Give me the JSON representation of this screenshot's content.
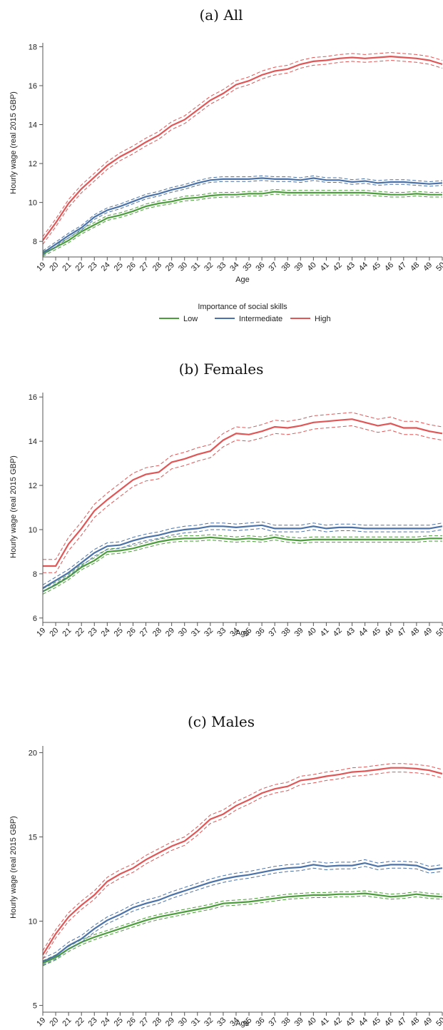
{
  "colors": {
    "Low": "#4b9c3a",
    "Intermediate": "#4a72a8",
    "High": "#e05555"
  },
  "legend": {
    "title": "Importance of social skills",
    "items": [
      {
        "name": "Low",
        "color": "#4b9c3a"
      },
      {
        "name": "Intermediate",
        "color": "#4a72a8"
      },
      {
        "name": "High",
        "color": "#e05555"
      }
    ]
  },
  "chart_data": [
    {
      "type": "line",
      "title": "(a) All",
      "xlabel": "Age",
      "ylabel": "Hourly wage (real 2015 GBP)",
      "x": [
        19,
        20,
        21,
        22,
        23,
        24,
        25,
        26,
        27,
        28,
        29,
        30,
        31,
        32,
        33,
        34,
        35,
        36,
        37,
        38,
        39,
        40,
        41,
        42,
        43,
        44,
        45,
        46,
        47,
        48,
        49,
        50
      ],
      "xlim": [
        19,
        50
      ],
      "ylim": [
        7.2,
        18.2
      ],
      "yticks": [
        8,
        10,
        12,
        14,
        16,
        18
      ],
      "legend_position": "bottom",
      "series": [
        {
          "name": "Low",
          "ci": 0.12,
          "values": [
            7.35,
            7.7,
            8.05,
            8.5,
            8.85,
            9.2,
            9.35,
            9.55,
            9.8,
            9.95,
            10.05,
            10.2,
            10.25,
            10.35,
            10.4,
            10.4,
            10.45,
            10.45,
            10.55,
            10.5,
            10.5,
            10.5,
            10.5,
            10.5,
            10.5,
            10.5,
            10.45,
            10.4,
            10.4,
            10.45,
            10.4,
            10.4
          ]
        },
        {
          "name": "Intermediate",
          "ci": 0.12,
          "values": [
            7.4,
            7.85,
            8.3,
            8.7,
            9.25,
            9.6,
            9.8,
            10.05,
            10.3,
            10.45,
            10.65,
            10.8,
            11.0,
            11.15,
            11.2,
            11.2,
            11.2,
            11.25,
            11.2,
            11.2,
            11.15,
            11.25,
            11.15,
            11.15,
            11.05,
            11.1,
            11.0,
            11.05,
            11.05,
            11.0,
            10.95,
            11.0
          ]
        },
        {
          "name": "High",
          "ci": 0.2,
          "values": [
            8.05,
            8.95,
            9.95,
            10.7,
            11.3,
            11.9,
            12.35,
            12.7,
            13.1,
            13.45,
            13.95,
            14.25,
            14.75,
            15.25,
            15.6,
            16.05,
            16.25,
            16.55,
            16.75,
            16.85,
            17.1,
            17.25,
            17.3,
            17.4,
            17.45,
            17.4,
            17.45,
            17.5,
            17.45,
            17.4,
            17.3,
            17.1
          ]
        }
      ]
    },
    {
      "type": "line",
      "title": "(b) Females",
      "xlabel": "Age",
      "ylabel": "Hourly wage (real 2015 GBP)",
      "x": [
        19,
        20,
        21,
        22,
        23,
        24,
        25,
        26,
        27,
        28,
        29,
        30,
        31,
        32,
        33,
        34,
        35,
        36,
        37,
        38,
        39,
        40,
        41,
        42,
        43,
        44,
        45,
        46,
        47,
        48,
        49,
        50
      ],
      "xlim": [
        19,
        50
      ],
      "ylim": [
        5.8,
        16.2
      ],
      "yticks": [
        6,
        8,
        10,
        12,
        14,
        16
      ],
      "series": [
        {
          "name": "Low",
          "ci": 0.12,
          "values": [
            7.2,
            7.5,
            7.85,
            8.3,
            8.6,
            9.0,
            9.05,
            9.15,
            9.3,
            9.45,
            9.55,
            9.6,
            9.6,
            9.65,
            9.6,
            9.55,
            9.6,
            9.55,
            9.65,
            9.55,
            9.5,
            9.55,
            9.55,
            9.55,
            9.55,
            9.55,
            9.55,
            9.55,
            9.55,
            9.55,
            9.6,
            9.6
          ]
        },
        {
          "name": "Intermediate",
          "ci": 0.15,
          "values": [
            7.35,
            7.7,
            8.05,
            8.5,
            8.95,
            9.25,
            9.3,
            9.5,
            9.65,
            9.75,
            9.9,
            10.0,
            10.05,
            10.15,
            10.15,
            10.1,
            10.15,
            10.2,
            10.05,
            10.05,
            10.05,
            10.15,
            10.05,
            10.1,
            10.1,
            10.05,
            10.05,
            10.05,
            10.05,
            10.05,
            10.05,
            10.15
          ]
        },
        {
          "name": "High",
          "ci": 0.3,
          "values": [
            8.35,
            8.35,
            9.35,
            10.05,
            10.85,
            11.35,
            11.8,
            12.25,
            12.5,
            12.6,
            13.05,
            13.2,
            13.4,
            13.55,
            14.05,
            14.35,
            14.3,
            14.45,
            14.65,
            14.6,
            14.7,
            14.85,
            14.9,
            14.95,
            15.0,
            14.85,
            14.7,
            14.8,
            14.6,
            14.6,
            14.45,
            14.35
          ]
        }
      ]
    },
    {
      "type": "line",
      "title": "(c) Males",
      "xlabel": "Age",
      "ylabel": "Hourly wage (real 2015 GBP)",
      "x": [
        19,
        20,
        21,
        22,
        23,
        24,
        25,
        26,
        27,
        28,
        29,
        30,
        31,
        32,
        33,
        34,
        35,
        36,
        37,
        38,
        39,
        40,
        41,
        42,
        43,
        44,
        45,
        46,
        47,
        48,
        49,
        50
      ],
      "xlim": [
        19,
        50
      ],
      "ylim": [
        4.6,
        20.4
      ],
      "yticks": [
        5,
        10,
        15,
        20
      ],
      "series": [
        {
          "name": "Low",
          "ci": 0.15,
          "values": [
            7.5,
            7.85,
            8.35,
            8.75,
            9.05,
            9.3,
            9.55,
            9.8,
            10.05,
            10.25,
            10.4,
            10.55,
            10.7,
            10.85,
            11.05,
            11.1,
            11.15,
            11.25,
            11.35,
            11.45,
            11.5,
            11.55,
            11.55,
            11.6,
            11.6,
            11.65,
            11.55,
            11.45,
            11.5,
            11.6,
            11.5,
            11.45
          ]
        },
        {
          "name": "Intermediate",
          "ci": 0.2,
          "values": [
            7.6,
            7.95,
            8.55,
            8.95,
            9.55,
            10.05,
            10.4,
            10.8,
            11.05,
            11.25,
            11.55,
            11.8,
            12.05,
            12.3,
            12.5,
            12.65,
            12.75,
            12.9,
            13.05,
            13.15,
            13.2,
            13.35,
            13.25,
            13.3,
            13.3,
            13.45,
            13.25,
            13.35,
            13.35,
            13.3,
            13.05,
            13.15
          ]
        },
        {
          "name": "High",
          "ci": 0.25,
          "values": [
            8.0,
            9.25,
            10.25,
            10.95,
            11.55,
            12.35,
            12.8,
            13.15,
            13.65,
            14.05,
            14.45,
            14.75,
            15.35,
            16.05,
            16.35,
            16.85,
            17.2,
            17.6,
            17.85,
            18.0,
            18.35,
            18.45,
            18.6,
            18.7,
            18.85,
            18.9,
            19.0,
            19.1,
            19.1,
            19.05,
            18.95,
            18.75
          ]
        }
      ]
    }
  ]
}
